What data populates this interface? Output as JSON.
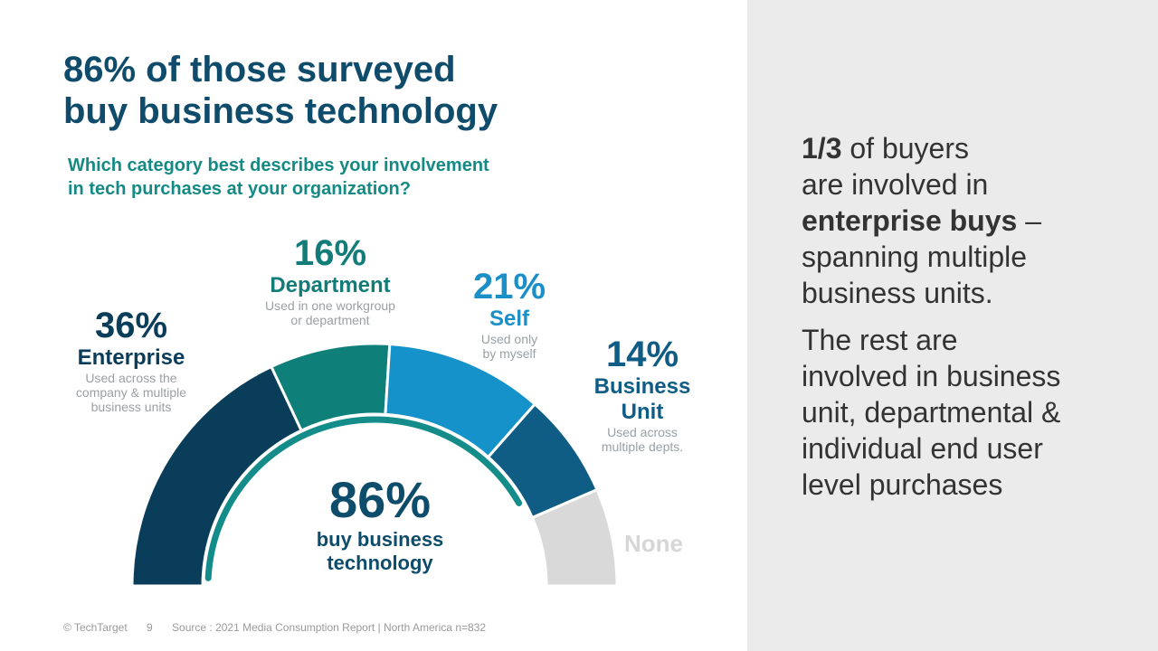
{
  "title": {
    "line1": "86% of those surveyed",
    "line2": "buy business technology"
  },
  "question": {
    "line1": "Which category best describes your involvement",
    "line2": "in tech purchases at your organization?"
  },
  "chart_data": {
    "type": "pie",
    "subtype": "semicircle-gauge",
    "categories": [
      "Enterprise",
      "Department",
      "Self",
      "Business Unit",
      "None"
    ],
    "values": [
      36,
      16,
      21,
      14,
      13
    ],
    "colors": [
      "#0a3d5a",
      "#0f7f7a",
      "#1592c9",
      "#0f5c85",
      "#d9d9d9"
    ],
    "labels": [
      {
        "pct": "36%",
        "name": "Enterprise",
        "desc1": "Used across the",
        "desc2": "company & multiple",
        "desc3": "business units"
      },
      {
        "pct": "16%",
        "name": "Department",
        "desc1": "Used in one workgroup",
        "desc2": "or department"
      },
      {
        "pct": "21%",
        "name": "Self",
        "desc1": "Used only",
        "desc2": "by myself"
      },
      {
        "pct": "14%",
        "name1": "Business",
        "name2": "Unit",
        "desc1": "Used across",
        "desc2": "multiple depts."
      },
      {
        "name": "None"
      }
    ],
    "total_buy": {
      "value": 86,
      "label": "86%",
      "caption1": "buy business",
      "caption2": "technology",
      "color": "#138c8a"
    }
  },
  "side": {
    "p1_bold": "1/3",
    "p1_a": " of buyers",
    "p1_b": "are involved  in",
    "p1_bold2": "enterprise buys",
    "p1_c": " –",
    "p1_d": "spanning multiple",
    "p1_e": "business units.",
    "p2_a": "The rest are",
    "p2_b": "involved  in business",
    "p2_c": "unit, departmental &",
    "p2_d": "individual  end user",
    "p2_e": "level  purchases"
  },
  "footer": {
    "copyright": "© TechTarget",
    "page": "9",
    "source": "Source : 2021 Media Consumption Report | North America n=832"
  }
}
